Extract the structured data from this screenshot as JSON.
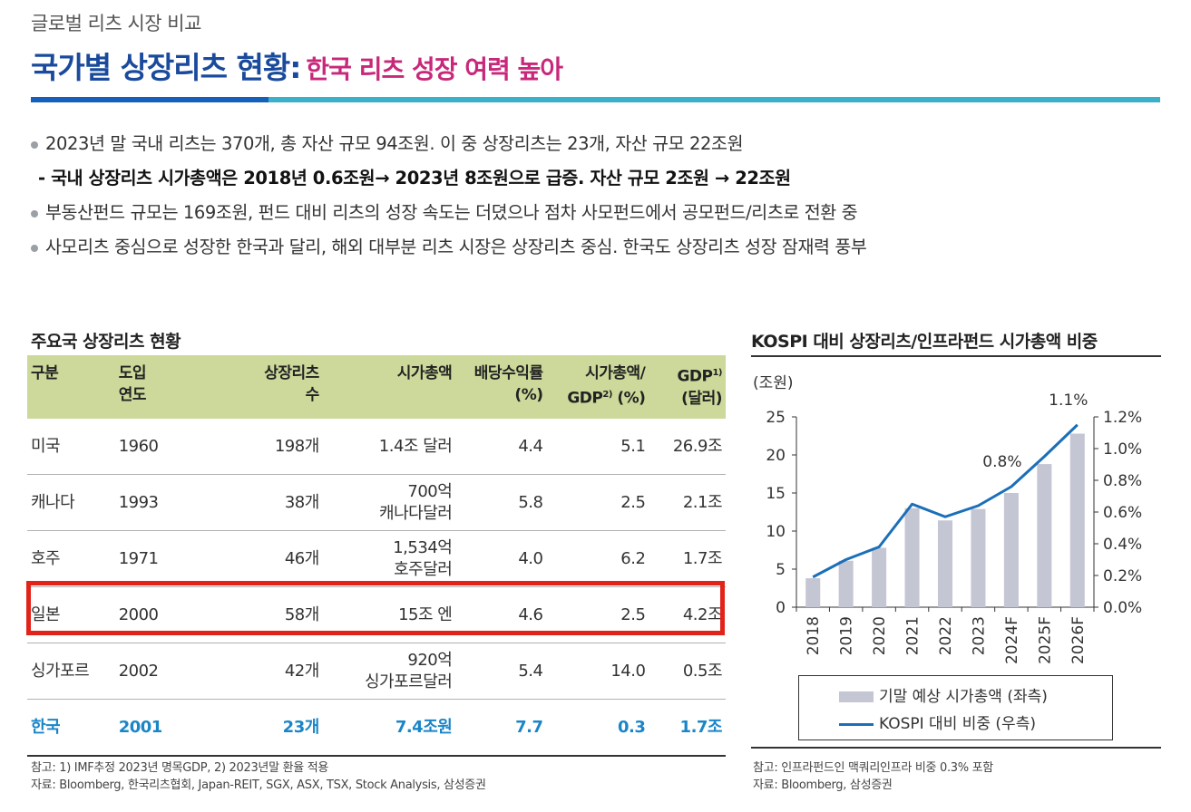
{
  "header": {
    "subtitle": "글로벌 리츠 시장 비교",
    "title_main": "국가별 상장리츠 현황:",
    "title_accent": "한국 리츠 성장 여력 높아"
  },
  "bullets": [
    "2023년 말 국내 리츠는 370개, 총 자산 규모 94조원. 이 중 상장리츠는 23개, 자산 규모 22조원",
    "- 국내 상장리츠 시가총액은 2018년 0.6조원→ 2023년 8조원으로 급증. 자산 규모 2조원 → 22조원",
    "부동산펀드 규모는 169조원, 펀드 대비 리츠의 성장 속도는 더뎠으나 점차 사모펀드에서 공모펀드/리츠로 전환 중",
    "사모리츠 중심으로 성장한 한국과 달리, 해외 대부분 리츠 시장은 상장리츠 중심. 한국도 상장리츠 성장 잠재력 풍부"
  ],
  "table": {
    "title": "주요국 상장리츠 현황",
    "headers": {
      "h1": "구분",
      "h2a": "도입",
      "h2b": "연도",
      "h3a": "상장리츠",
      "h3b": "수",
      "h4": "시가총액",
      "h5a": "배당수익률",
      "h5b": "(%)",
      "h6a": "시가총액/",
      "h6b": "GDP",
      "h6sup": "2)",
      "h6c": "(%)",
      "h7a": "GDP",
      "h7sup": "1)",
      "h7b": "(달러)"
    },
    "rows": [
      {
        "country": "미국",
        "year": "1960",
        "count": "198개",
        "cap1": "1.4조 달러",
        "cap2": "",
        "yield": "4.4",
        "ratio": "5.1",
        "gdp": "26.9조"
      },
      {
        "country": "캐나다",
        "year": "1993",
        "count": "38개",
        "cap1": "700억",
        "cap2": "캐나다달러",
        "yield": "5.8",
        "ratio": "2.5",
        "gdp": "2.1조"
      },
      {
        "country": "호주",
        "year": "1971",
        "count": "46개",
        "cap1": "1,534억",
        "cap2": "호주달러",
        "yield": "4.0",
        "ratio": "6.2",
        "gdp": "1.7조"
      },
      {
        "country": "일본",
        "year": "2000",
        "count": "58개",
        "cap1": "15조 엔",
        "cap2": "",
        "yield": "4.6",
        "ratio": "2.5",
        "gdp": "4.2조"
      },
      {
        "country": "싱가포르",
        "year": "2002",
        "count": "42개",
        "cap1": "920억",
        "cap2": "싱가포르달러",
        "yield": "5.4",
        "ratio": "14.0",
        "gdp": "0.5조"
      },
      {
        "country": "한국",
        "year": "2001",
        "count": "23개",
        "cap1": "7.4조원",
        "cap2": "",
        "yield": "7.7",
        "ratio": "0.3",
        "gdp": "1.7조"
      }
    ],
    "note1": "참고: 1) IMF추정 2023년 명목GDP, 2) 2023년말 환율 적용",
    "note2": "자료: Bloomberg, 한국리츠협회, Japan-REIT, SGX, ASX, TSX, Stock Analysis, 삼성증권"
  },
  "chart": {
    "title": "KOSPI 대비 상장리츠/인프라펀드 시가총액 비중",
    "unit_label": "(조원)",
    "note1": "참고: 인프라펀드인 맥쿼리인프라 비중 0.3% 포함",
    "note2": "자료: Bloomberg, 삼성증권"
  },
  "chart_data": {
    "type": "bar",
    "categories": [
      "2018",
      "2019",
      "2020",
      "2021",
      "2022",
      "2023",
      "2024F",
      "2025F",
      "2026F"
    ],
    "series": [
      {
        "name": "기말 예상 시가총액 (좌측)",
        "type": "bar",
        "axis": "left",
        "color": "#c5c6d3",
        "values": [
          3.8,
          6.1,
          7.8,
          13.0,
          11.4,
          12.9,
          15.0,
          18.8,
          22.8
        ]
      },
      {
        "name": "KOSPI 대비 비중 (우측)",
        "type": "line",
        "axis": "right",
        "color": "#1a6fb8",
        "values": [
          0.19,
          0.3,
          0.38,
          0.65,
          0.57,
          0.64,
          0.76,
          0.95,
          1.15
        ]
      }
    ],
    "ylim_left": [
      0,
      25
    ],
    "yticks_left": [
      "0",
      "5",
      "10",
      "15",
      "20",
      "25"
    ],
    "ylim_right": [
      0,
      1.2
    ],
    "yticks_right": [
      "0.0%",
      "0.2%",
      "0.4%",
      "0.6%",
      "0.8%",
      "1.0%",
      "1.2%"
    ],
    "annotations": [
      {
        "category": "2024F",
        "text": "0.8%"
      },
      {
        "category": "2026F",
        "text": "1.1%"
      }
    ],
    "legend_position": "bottom"
  }
}
